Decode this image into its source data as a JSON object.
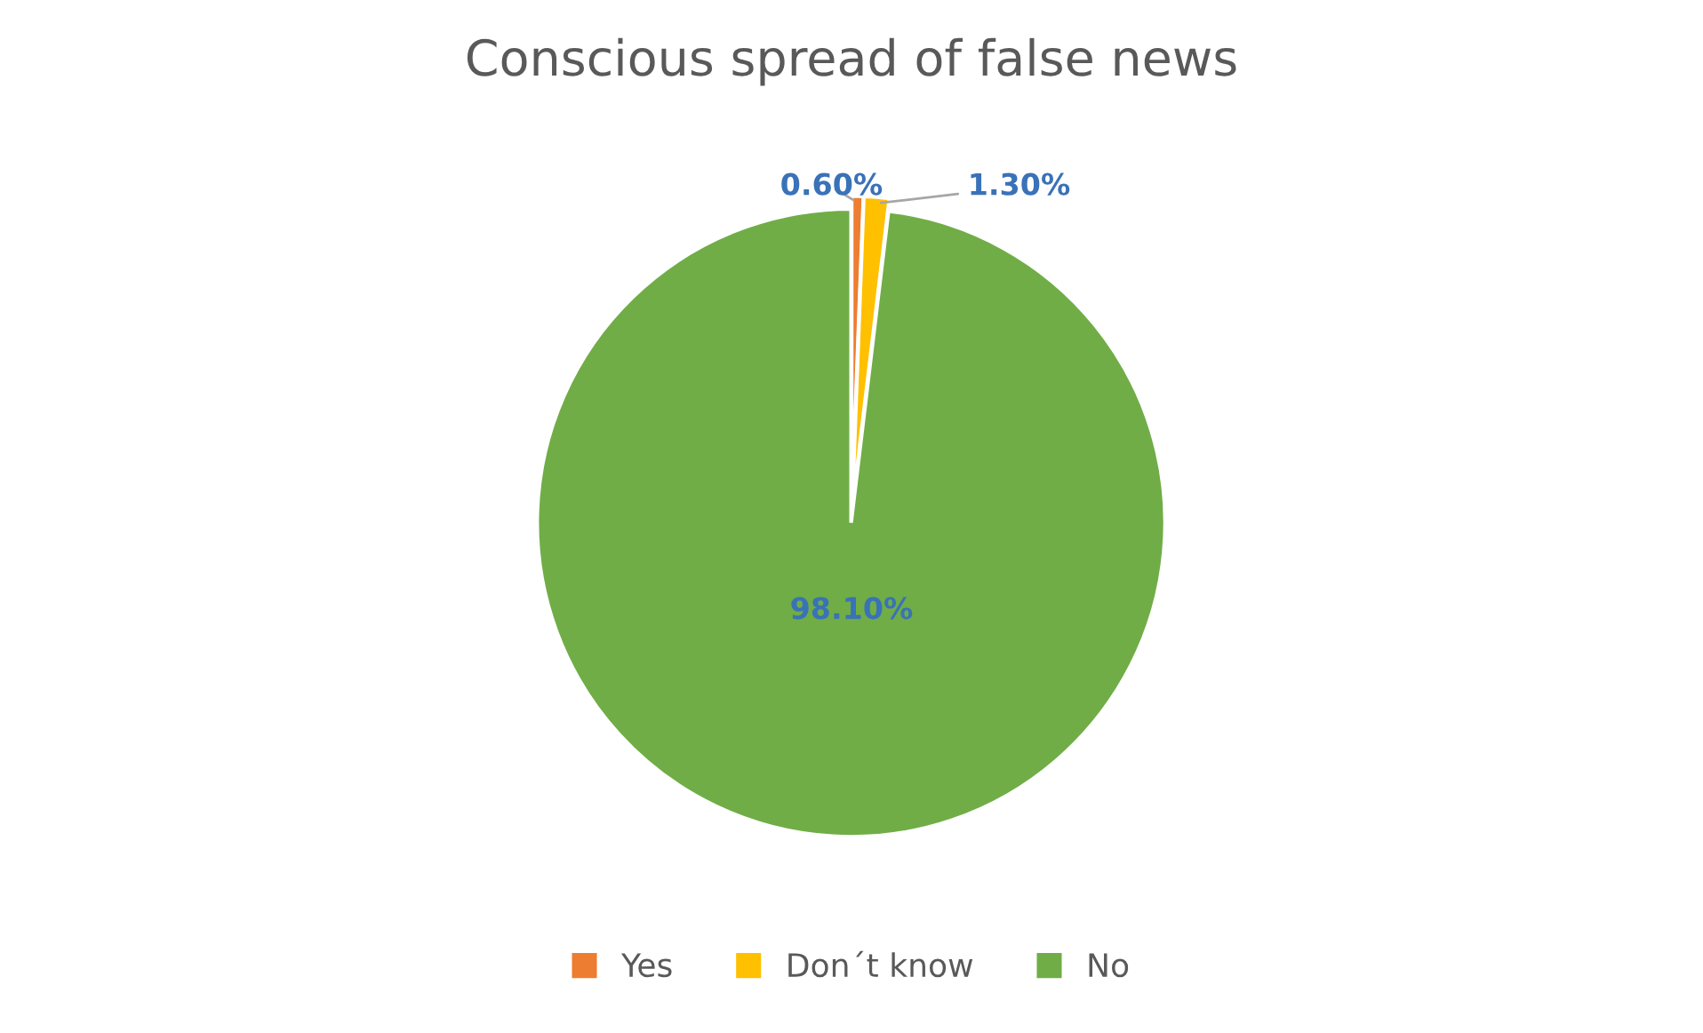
{
  "chart_data": {
    "type": "pie",
    "title": "Conscious spread of false news",
    "categories": [
      "Yes",
      "Don´t know",
      "No"
    ],
    "values": [
      0.6,
      1.3,
      98.1
    ],
    "colors": [
      "#ed7d31",
      "#ffc000",
      "#70ad47"
    ],
    "value_labels": [
      "0.60%",
      "1.30%",
      "98.10%"
    ],
    "legend": "bottom"
  }
}
